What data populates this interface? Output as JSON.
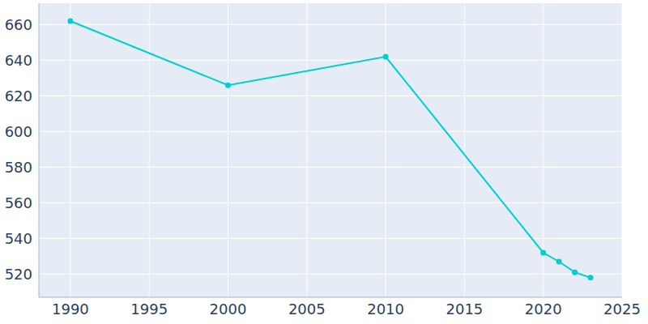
{
  "chart_data": {
    "type": "line",
    "x": [
      1990,
      2000,
      2010,
      2020,
      2021,
      2022,
      2023
    ],
    "values": [
      662,
      626,
      642,
      532,
      527,
      521,
      518
    ],
    "color": "#00cfcf",
    "xlim": [
      1988,
      2025
    ],
    "xticks": [
      1990,
      1995,
      2000,
      2005,
      2010,
      2015,
      2020,
      2025
    ],
    "ylim": [
      507,
      672
    ],
    "yticks": [
      520,
      540,
      560,
      580,
      600,
      620,
      640,
      660
    ],
    "grid": true,
    "marker": "circle"
  }
}
